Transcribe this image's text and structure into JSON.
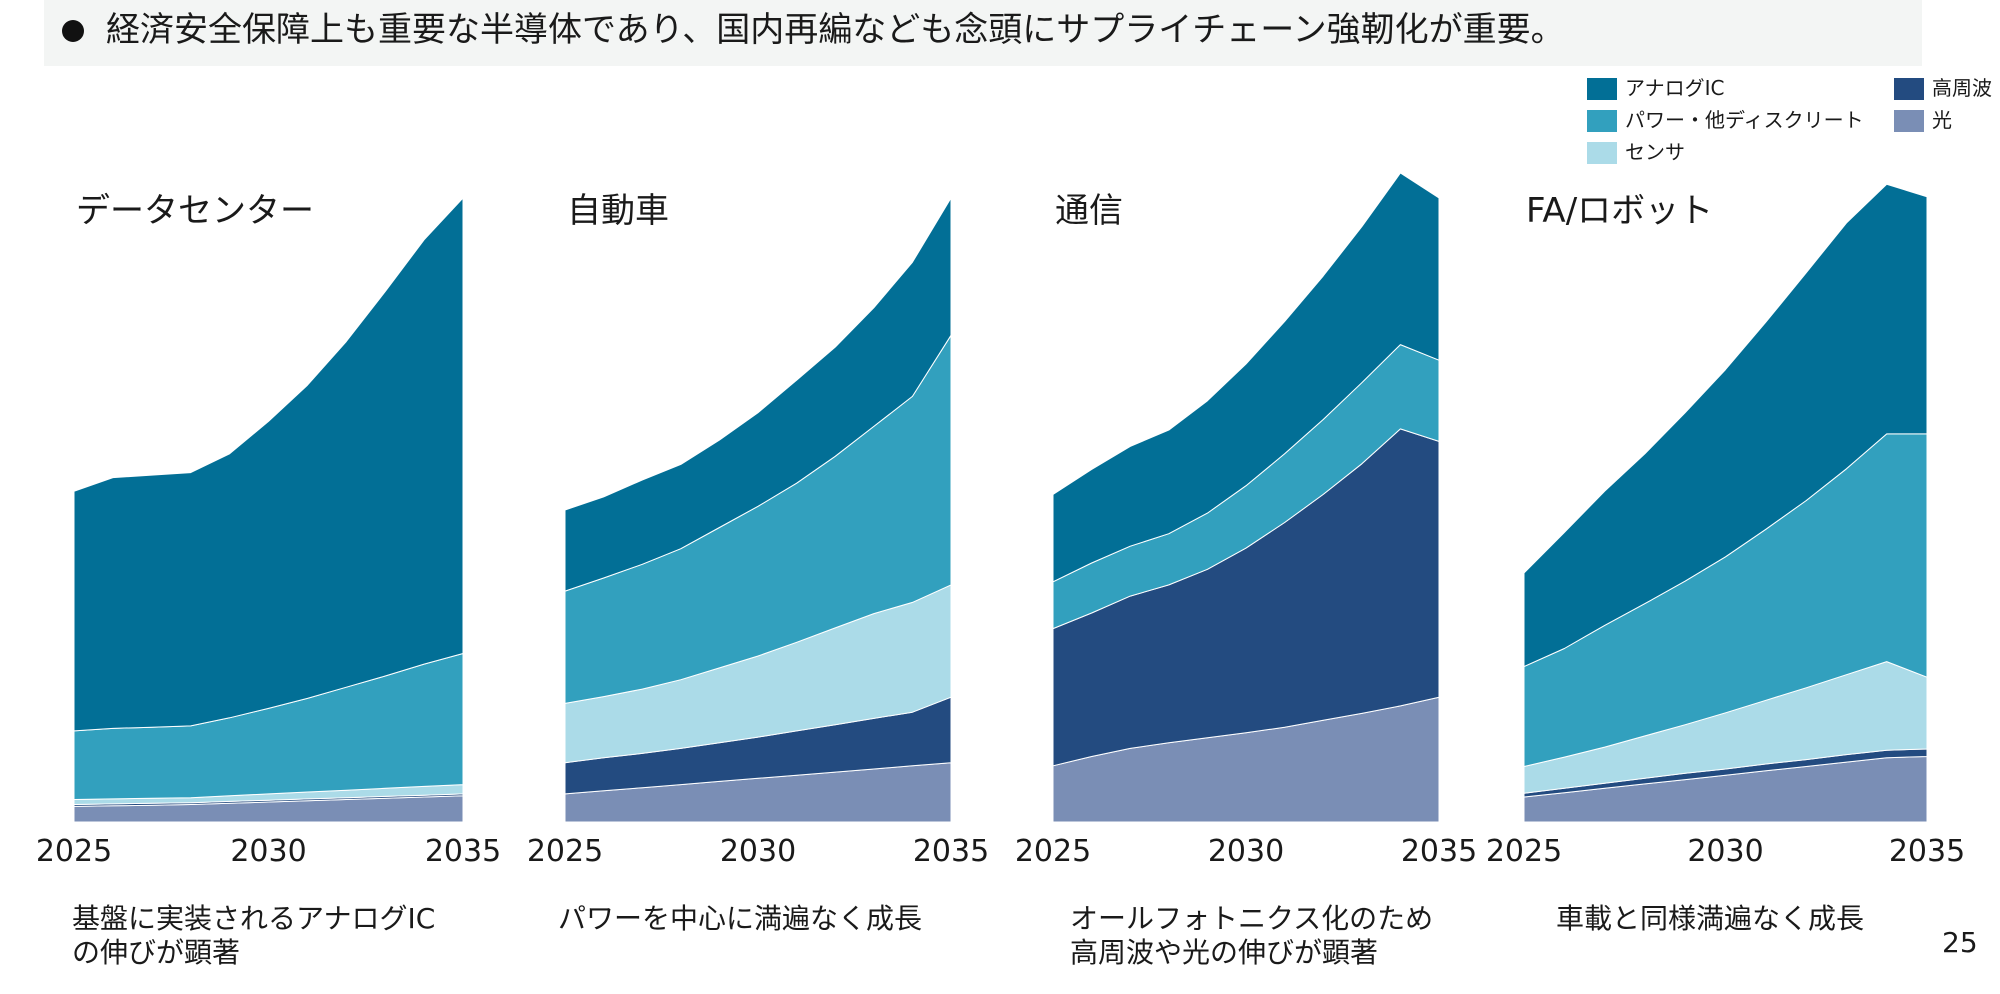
{
  "header": {
    "text": "経済安全保障上も重要な半導体であり、国内再編なども念頭にサプライチェーン強靭化が重要。"
  },
  "legend": [
    {
      "label": "アナログIC",
      "color": "#026f96"
    },
    {
      "label": "パワー・他ディスクリート",
      "color": "#32a0be"
    },
    {
      "label": "センサ",
      "color": "#abdbe8"
    },
    {
      "label": "高周波",
      "color": "#234b80"
    },
    {
      "label": "光",
      "color": "#7a8eb5"
    }
  ],
  "chart_data": [
    {
      "type": "area",
      "stacked": true,
      "title": "データセンター",
      "x": [
        2025,
        2026,
        2027,
        2028,
        2029,
        2030,
        2031,
        2032,
        2033,
        2034,
        2035
      ],
      "xticks": [
        "2025",
        "2030",
        "2035"
      ],
      "ylim": [
        0,
        100
      ],
      "series": [
        {
          "name": "光",
          "values": [
            2.5,
            2.6,
            2.7,
            2.8,
            3.0,
            3.2,
            3.4,
            3.6,
            3.8,
            4.0,
            4.2
          ]
        },
        {
          "name": "高周波",
          "values": [
            0.3,
            0.3,
            0.3,
            0.3,
            0.3,
            0.3,
            0.3,
            0.3,
            0.3,
            0.3,
            0.3
          ]
        },
        {
          "name": "センサ",
          "values": [
            0.8,
            0.8,
            0.8,
            0.8,
            0.9,
            1.0,
            1.1,
            1.2,
            1.3,
            1.4,
            1.5
          ]
        },
        {
          "name": "パワー・他ディスクリート",
          "values": [
            11.0,
            11.3,
            11.4,
            11.5,
            12.5,
            13.7,
            15.0,
            16.5,
            18.0,
            19.6,
            21.0
          ]
        },
        {
          "name": "アナログIC",
          "values": [
            38.4,
            40.2,
            40.4,
            40.6,
            42.3,
            46.0,
            50.2,
            55.4,
            61.6,
            68.0,
            73.0
          ]
        }
      ]
    },
    {
      "type": "area",
      "stacked": true,
      "title": "自動車",
      "x": [
        2025,
        2026,
        2027,
        2028,
        2029,
        2030,
        2031,
        2032,
        2033,
        2034,
        2035
      ],
      "xticks": [
        "2025",
        "2030",
        "2035"
      ],
      "ylim": [
        0,
        100
      ],
      "series": [
        {
          "name": "光",
          "values": [
            4.5,
            5.0,
            5.5,
            6.0,
            6.5,
            7.0,
            7.5,
            8.0,
            8.5,
            9.0,
            9.5
          ]
        },
        {
          "name": "高周波",
          "values": [
            5.0,
            5.3,
            5.5,
            5.8,
            6.2,
            6.6,
            7.1,
            7.6,
            8.1,
            8.6,
            10.5
          ]
        },
        {
          "name": "センサ",
          "values": [
            9.5,
            9.8,
            10.3,
            11.0,
            12.0,
            13.0,
            14.2,
            15.5,
            16.8,
            17.6,
            18.0
          ]
        },
        {
          "name": "パワー・他ディスクリート",
          "values": [
            18.0,
            19.0,
            20.0,
            21.0,
            22.5,
            24.0,
            25.5,
            27.5,
            30.0,
            33.0,
            40.0
          ]
        },
        {
          "name": "アナログIC",
          "values": [
            13.0,
            13.0,
            13.5,
            13.5,
            14.0,
            15.0,
            16.5,
            17.5,
            19.0,
            21.5,
            22.0
          ]
        }
      ]
    },
    {
      "type": "area",
      "stacked": true,
      "title": "通信",
      "x": [
        2025,
        2026,
        2027,
        2028,
        2029,
        2030,
        2031,
        2032,
        2033,
        2034,
        2035
      ],
      "xticks": [
        "2025",
        "2030",
        "2035"
      ],
      "ylim": [
        0,
        100
      ],
      "series": [
        {
          "name": "光",
          "values": [
            9.0,
            10.5,
            11.8,
            12.7,
            13.5,
            14.3,
            15.2,
            16.3,
            17.4,
            18.6,
            20.0
          ]
        },
        {
          "name": "高周波",
          "values": [
            22.0,
            23.0,
            24.4,
            25.3,
            27.0,
            29.6,
            32.8,
            36.2,
            40.0,
            44.4,
            41.0
          ]
        },
        {
          "name": "センサ",
          "values": [
            0,
            0,
            0,
            0,
            0,
            0,
            0,
            0,
            0,
            0,
            0
          ]
        },
        {
          "name": "パワー・他ディスクリート",
          "values": [
            7.5,
            8.0,
            8.0,
            8.2,
            9.0,
            10.0,
            11.0,
            12.0,
            13.0,
            13.5,
            13.0
          ]
        },
        {
          "name": "アナログIC",
          "values": [
            14.0,
            15.0,
            16.0,
            16.6,
            18.0,
            19.5,
            21.2,
            23.0,
            25.0,
            27.5,
            26.0
          ]
        }
      ]
    },
    {
      "type": "area",
      "stacked": true,
      "title": "FA/ロボット",
      "x": [
        2025,
        2026,
        2027,
        2028,
        2029,
        2030,
        2031,
        2032,
        2033,
        2034,
        2035
      ],
      "xticks": [
        "2025",
        "2030",
        "2035"
      ],
      "ylim": [
        0,
        100
      ],
      "series": [
        {
          "name": "光",
          "values": [
            4.0,
            4.7,
            5.4,
            6.1,
            6.8,
            7.5,
            8.2,
            8.9,
            9.6,
            10.3,
            10.5
          ]
        },
        {
          "name": "高周波",
          "values": [
            0.6,
            0.7,
            0.8,
            0.9,
            1.0,
            1.0,
            1.1,
            1.1,
            1.2,
            1.2,
            1.2
          ]
        },
        {
          "name": "センサ",
          "values": [
            4.3,
            5.0,
            5.8,
            6.8,
            7.8,
            9.0,
            10.2,
            11.5,
            12.8,
            14.2,
            11.5
          ]
        },
        {
          "name": "パワー・他ディスクリート",
          "values": [
            16.0,
            17.4,
            19.5,
            21.2,
            23.0,
            25.0,
            27.4,
            30.0,
            33.0,
            36.5,
            39.0
          ]
        },
        {
          "name": "アナログIC",
          "values": [
            15.0,
            18.6,
            21.5,
            24.0,
            27.0,
            30.0,
            33.2,
            36.5,
            39.4,
            40.0,
            38.0
          ]
        }
      ]
    }
  ],
  "captions": [
    "基盤に実装されるアナログIC\nの伸びが顕著",
    "パワーを中心に満遍なく成長",
    "オールフォトニクス化のため\n高周波や光の伸びが顕著",
    "車載と同様満遍なく成長"
  ],
  "page_number": "25"
}
